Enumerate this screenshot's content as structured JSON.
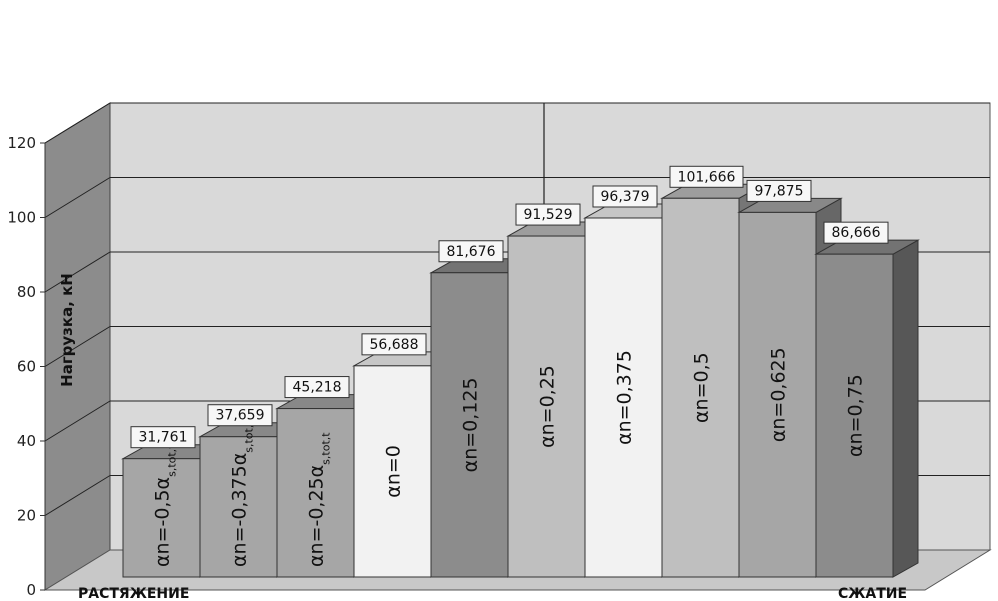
{
  "chart_data": {
    "type": "bar",
    "ylabel": "Нагрузка, кН",
    "ylim": [
      0,
      120
    ],
    "yticks": [
      "0",
      "20",
      "40",
      "60",
      "80",
      "100",
      "120"
    ],
    "grid": true,
    "group_labels": {
      "left": "РАСТЯЖЕНИЕ",
      "right": "СЖАТИЕ"
    },
    "categories": [
      {
        "main": "αn=-0,5α",
        "sub": "s,tot,t"
      },
      {
        "main": "αn=-0,375α",
        "sub": "s,tot,t"
      },
      {
        "main": "αn=-0,25α",
        "sub": "s,tot,t"
      },
      {
        "main": "αn=0",
        "sub": ""
      },
      {
        "main": "αn=0,125",
        "sub": ""
      },
      {
        "main": "αn=0,25",
        "sub": ""
      },
      {
        "main": "αn=0,375",
        "sub": ""
      },
      {
        "main": "αn=0,5",
        "sub": ""
      },
      {
        "main": "αn=0,625",
        "sub": ""
      },
      {
        "main": "αn=0,75",
        "sub": ""
      }
    ],
    "values": [
      31.761,
      37.659,
      45.218,
      56.688,
      81.676,
      91.529,
      96.379,
      101.666,
      97.875,
      86.666
    ],
    "value_labels": [
      "31,761",
      "37,659",
      "45,218",
      "56,688",
      "81,676",
      "91,529",
      "96,379",
      "101,666",
      "97,875",
      "86,666"
    ],
    "colors": [
      "#a6a6a6",
      "#a6a6a6",
      "#a6a6a6",
      "#f2f2f2",
      "#8c8c8c",
      "#bfbfbf",
      "#f2f2f2",
      "#bfbfbf",
      "#a6a6a6",
      "#8c8c8c"
    ]
  }
}
